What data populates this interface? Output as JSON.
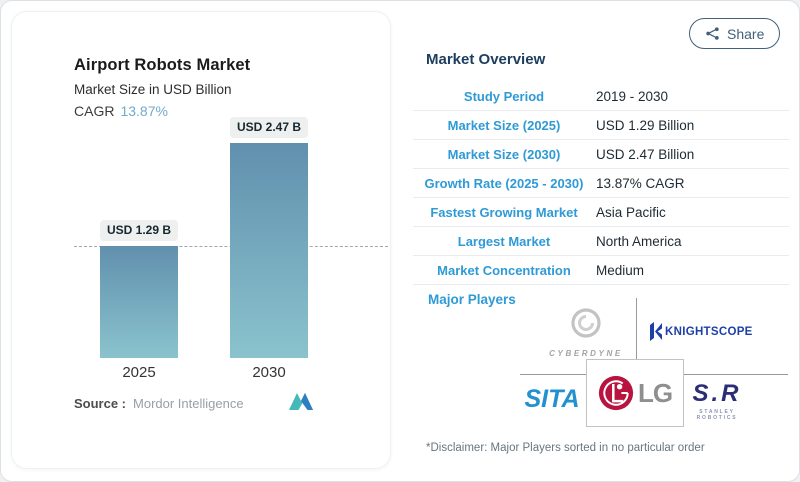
{
  "share_button": {
    "label": "Share"
  },
  "chart_panel": {
    "title": "Airport Robots Market",
    "subtitle": "Market Size in USD Billion",
    "cagr_label": "CAGR",
    "cagr_value": "13.87%",
    "source_label": "Source :",
    "source_name": "Mordor Intelligence"
  },
  "chart_data": {
    "type": "bar",
    "categories": [
      "2025",
      "2030"
    ],
    "values": [
      1.29,
      2.47
    ],
    "bar_labels": [
      "USD 1.29 B",
      "USD 2.47 B"
    ],
    "title": "Airport Robots Market",
    "ylabel": "Market Size in USD Billion",
    "ylim": [
      0,
      2.47
    ],
    "guideline_at": 1.29,
    "grid": false,
    "legend": "none",
    "bar_color_top": "#6190ae",
    "bar_color_bottom": "#8ac3cd"
  },
  "overview": {
    "title": "Market Overview",
    "rows": [
      {
        "label": "Study Period",
        "value": "2019 - 2030"
      },
      {
        "label": "Market Size (2025)",
        "value": "USD 1.29 Billion"
      },
      {
        "label": "Market Size (2030)",
        "value": "USD 2.47 Billion"
      },
      {
        "label": "Growth Rate (2025 - 2030)",
        "value": "13.87% CAGR"
      },
      {
        "label": "Fastest Growing Market",
        "value": "Asia Pacific"
      },
      {
        "label": "Largest Market",
        "value": "North America"
      },
      {
        "label": "Market Concentration",
        "value": "Medium"
      }
    ],
    "major_players_label": "Major Players",
    "players": [
      {
        "name": "CYBERDYNE"
      },
      {
        "name": "KNIGHTSCOPE"
      },
      {
        "name": "SITA"
      },
      {
        "name": "LG"
      },
      {
        "name": "S.R",
        "caption": "STANLEY ROBOTICS"
      }
    ],
    "disclaimer": "*Disclaimer: Major Players sorted in no particular order"
  },
  "colors": {
    "accent_blue": "#2e9ad6",
    "heading_navy": "#1d3d5f",
    "share_slate": "#41607c",
    "cagr_blue": "#74a9cd",
    "knightscope_blue": "#1d3fa8",
    "sita_blue": "#2191d0",
    "lg_red": "#b9133f",
    "stanley_navy": "#2b2d77",
    "cyberdyne_gray": "#a3a3a3"
  }
}
